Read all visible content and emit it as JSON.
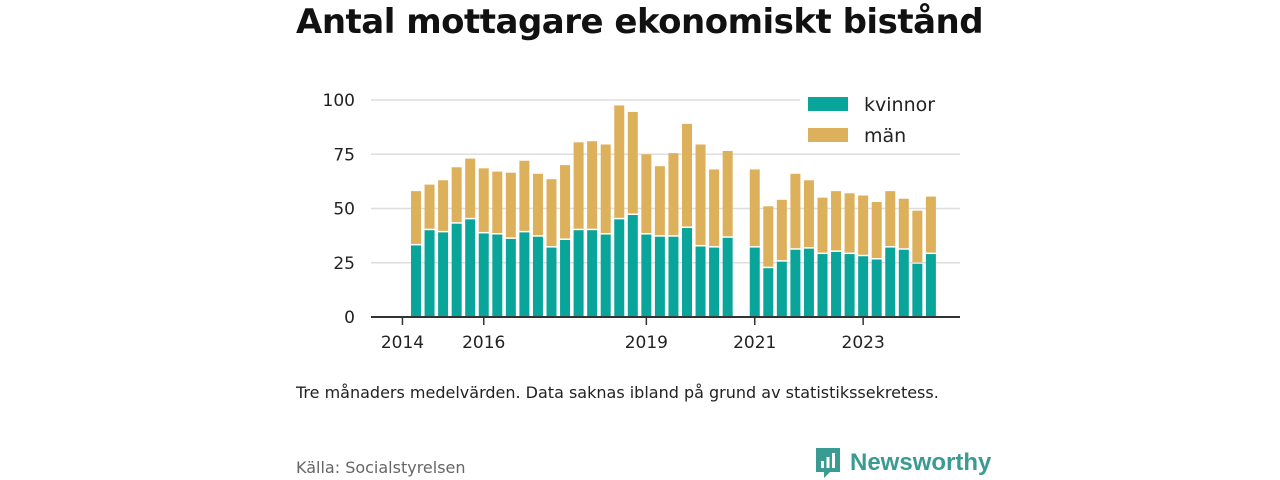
{
  "title": "Antal mottagare ekonomiskt bistånd",
  "note": "Tre månaders medelvärden. Data saknas ibland på grund av statistikssekretess.",
  "source": "Källa: Socialstyrelsen",
  "logo_text": "Newsworthy",
  "colors": {
    "kvinnor": "#0aa59a",
    "man": "#ddb05b",
    "grid": "#dddddd",
    "axis": "#333333",
    "logo": "#3a9b92"
  },
  "chart_data": {
    "type": "bar",
    "stacked": true,
    "ylim": [
      0,
      100
    ],
    "yticks": [
      0,
      25,
      50,
      75,
      100
    ],
    "xticks": [
      {
        "label": "2014",
        "index": -1
      },
      {
        "label": "2016",
        "index": 5
      },
      {
        "label": "2019",
        "index": 17
      },
      {
        "label": "2021",
        "index": 25
      },
      {
        "label": "2023",
        "index": 33
      }
    ],
    "legend_position": "top-right",
    "series": [
      {
        "name": "kvinnor",
        "color": "#0aa59a",
        "values": [
          33,
          40,
          39,
          43,
          45,
          38.5,
          38,
          36,
          39,
          37,
          32,
          35.5,
          40,
          40,
          38,
          45,
          47,
          38,
          37,
          37,
          41,
          32.5,
          32,
          36.5,
          null,
          32,
          22.5,
          25.5,
          31,
          31.5,
          29,
          30,
          29,
          28,
          26.5,
          32,
          31,
          24.5,
          29
        ]
      },
      {
        "name": "män",
        "color": "#ddb05b",
        "values": [
          25,
          21,
          24,
          26,
          28,
          30,
          29,
          30.5,
          33,
          29,
          31.5,
          34.5,
          40.5,
          41,
          41.5,
          52.5,
          47.5,
          37,
          32.5,
          38.5,
          48,
          47,
          36,
          40,
          null,
          36,
          28.5,
          28.5,
          35,
          31.5,
          26,
          28,
          28,
          28,
          26.5,
          26,
          23.5,
          24.5,
          26.5
        ]
      }
    ]
  }
}
